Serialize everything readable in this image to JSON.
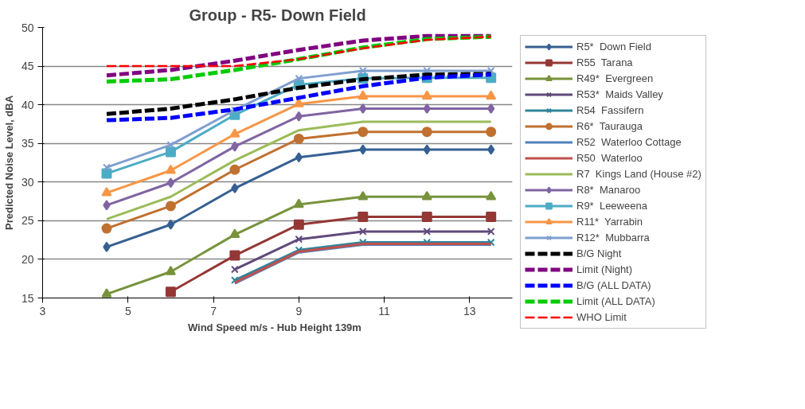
{
  "chart_data": {
    "type": "line",
    "title": "Group - R5- Down Field",
    "xlabel": "Wind Speed m/s  -  Hub Height 139m",
    "ylabel": "Predicted Noise Level, dBA",
    "x": [
      4.5,
      6,
      7.5,
      9,
      10.5,
      12,
      13.5
    ],
    "xlim": [
      3,
      14
    ],
    "xticks": [
      3,
      5,
      7,
      9,
      11,
      13
    ],
    "ylim": [
      15,
      50
    ],
    "yticks": [
      15,
      20,
      25,
      30,
      35,
      40,
      45,
      50
    ],
    "grid": "y",
    "legend": "right",
    "series": [
      {
        "name": "R5*  Down Field",
        "color": "#366092",
        "marker": "diamond",
        "values": [
          21.6,
          24.5,
          29.2,
          33.2,
          34.2,
          34.2,
          34.2
        ]
      },
      {
        "name": "R55  Tarana",
        "color": "#953735",
        "marker": "square",
        "values": [
          null,
          15.8,
          20.5,
          24.5,
          25.5,
          25.5,
          25.5
        ]
      },
      {
        "name": "R49*  Evergreen",
        "color": "#77933c",
        "marker": "triangle",
        "values": [
          15.5,
          18.4,
          23.2,
          27.1,
          28.1,
          28.1,
          28.1
        ]
      },
      {
        "name": "R53*  Maids Valley",
        "color": "#604a7b",
        "marker": "cross",
        "values": [
          null,
          null,
          18.7,
          22.6,
          23.6,
          23.6,
          23.6
        ]
      },
      {
        "name": "R54  Fassifern",
        "color": "#31859c",
        "marker": "cross",
        "values": [
          null,
          null,
          17.3,
          21.2,
          22.2,
          22.2,
          22.2
        ]
      },
      {
        "name": "R6*  Taurauga",
        "color": "#c0702f",
        "marker": "circle",
        "values": [
          24.0,
          26.9,
          31.6,
          35.6,
          36.5,
          36.5,
          36.5
        ]
      },
      {
        "name": "R52  Waterloo Cottage",
        "color": "#4f81bd",
        "marker": "none",
        "values": [
          null,
          null,
          16.9,
          20.9,
          21.9,
          21.9,
          21.9
        ]
      },
      {
        "name": "R50  Waterloo",
        "color": "#c0504d",
        "marker": "none",
        "values": [
          null,
          null,
          17.0,
          21.0,
          22.0,
          22.0,
          22.0
        ]
      },
      {
        "name": "R7  Kings Land (House #2)",
        "color": "#9bbb59",
        "marker": "none",
        "values": [
          25.2,
          28.1,
          32.8,
          36.7,
          37.8,
          37.8,
          37.8
        ]
      },
      {
        "name": "R8*  Manaroo",
        "color": "#8064a2",
        "marker": "diamond",
        "values": [
          27.0,
          29.9,
          34.6,
          38.5,
          39.5,
          39.5,
          39.5
        ]
      },
      {
        "name": "R9*  Leeweena",
        "color": "#4bacc6",
        "marker": "square",
        "values": [
          31.1,
          33.9,
          38.7,
          42.6,
          43.4,
          43.5,
          43.5
        ]
      },
      {
        "name": "R11*  Yarrabin",
        "color": "#f79646",
        "marker": "triangle",
        "values": [
          28.6,
          31.5,
          36.2,
          40.1,
          41.1,
          41.1,
          41.1
        ]
      },
      {
        "name": "R12*  Mubbarra",
        "color": "#7f9fcf",
        "marker": "cross",
        "values": [
          31.9,
          34.8,
          39.3,
          43.4,
          44.4,
          44.4,
          44.4
        ]
      },
      {
        "name": "B/G Night",
        "color": "#000000",
        "marker": "none",
        "line_style": "dashed",
        "values": [
          38.8,
          39.5,
          40.7,
          42.2,
          43.3,
          43.9,
          44.0
        ]
      },
      {
        "name": "Limit (Night)",
        "color": "#800080",
        "marker": "none",
        "line_style": "dashed",
        "values": [
          43.8,
          44.5,
          45.7,
          47.1,
          48.3,
          48.9,
          48.9
        ]
      },
      {
        "name": "B/G (ALL DATA)",
        "color": "#0000ff",
        "marker": "none",
        "line_style": "dashed",
        "values": [
          38.0,
          38.3,
          39.4,
          40.9,
          42.4,
          43.5,
          43.9
        ]
      },
      {
        "name": "Limit (ALL DATA)",
        "color": "#00cc00",
        "marker": "none",
        "line_style": "dashed",
        "values": [
          43.0,
          43.3,
          44.5,
          45.9,
          47.4,
          48.5,
          48.8
        ]
      },
      {
        "name": "WHO Limit",
        "color": "#ff0000",
        "marker": "none",
        "line_style": "dashed",
        "values": [
          45.0,
          45.0,
          45.0,
          45.9,
          47.3,
          48.4,
          48.8
        ]
      }
    ]
  }
}
